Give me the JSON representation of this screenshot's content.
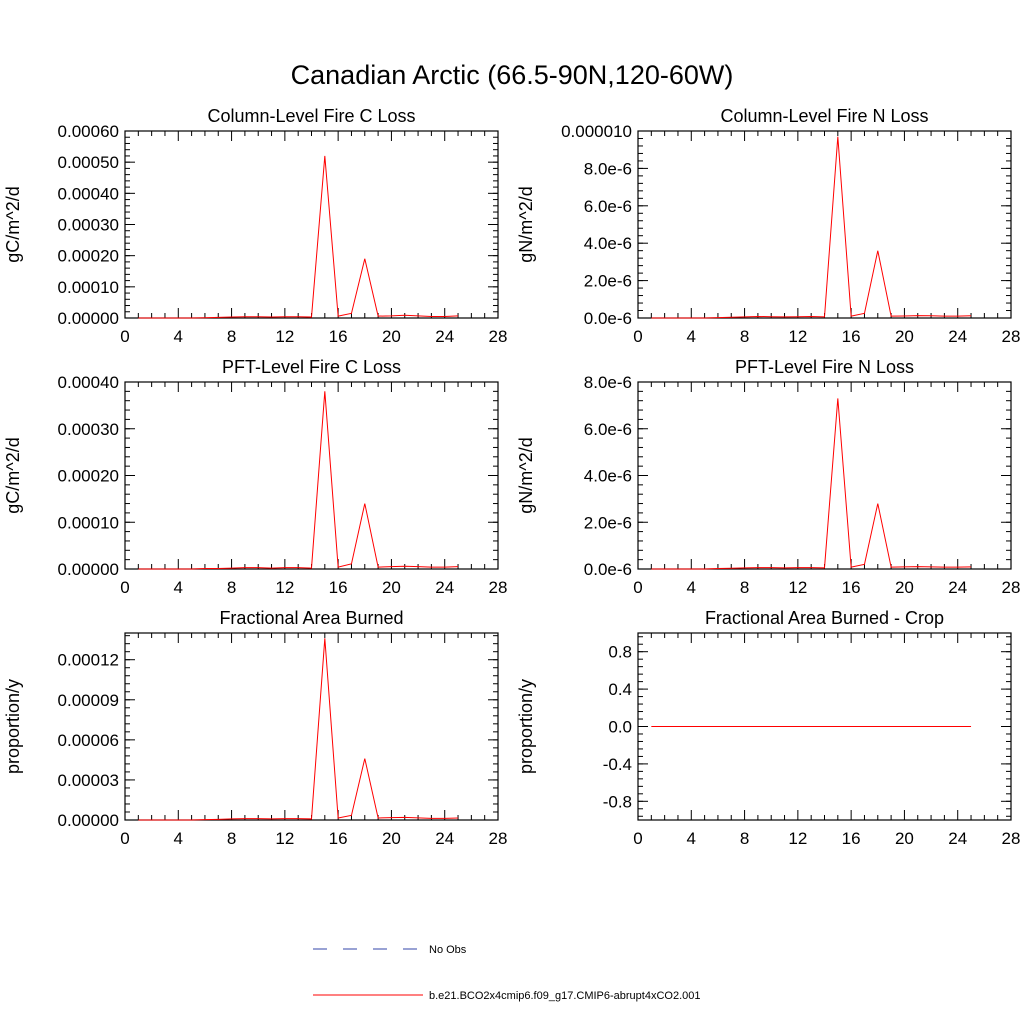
{
  "figure_title": "Canadian Arctic (66.5-90N,120-60W)",
  "legend": {
    "obs_label": "No Obs",
    "obs_color": "#3344aa",
    "model_label": "b.e21.BCO2x4cmip6.f09_g17.CMIP6-abrupt4xCO2.001",
    "model_color": "#ff0000"
  },
  "chart_data": [
    {
      "type": "line",
      "title": "Column-Level Fire C Loss",
      "ylabel": "gC/m^2/d",
      "xlim": [
        0,
        28
      ],
      "ylim": [
        0,
        0.0006
      ],
      "xticks": [
        "0",
        "4",
        "8",
        "12",
        "16",
        "20",
        "24",
        "28"
      ],
      "yticks": [
        "0.00000",
        "0.00010",
        "0.00020",
        "0.00030",
        "0.00040",
        "0.00050",
        "0.00060"
      ],
      "series": [
        {
          "color": "#ff0000",
          "x": [
            1,
            2,
            3,
            4,
            5,
            6,
            7,
            8,
            9,
            10,
            11,
            12,
            13,
            14,
            15,
            16,
            17,
            18,
            19,
            20,
            21,
            22,
            23,
            24,
            25
          ],
          "values": [
            0,
            0,
            0,
            0,
            0,
            1e-06,
            2e-06,
            3e-06,
            4e-06,
            4e-06,
            3e-06,
            4e-06,
            4e-06,
            3e-06,
            0.00052,
            6e-06,
            1.5e-05,
            0.00019,
            6e-06,
            7e-06,
            9e-06,
            7e-06,
            5e-06,
            5e-06,
            7e-06
          ]
        }
      ]
    },
    {
      "type": "line",
      "title": "Column-Level Fire N Loss",
      "ylabel": "gN/m^2/d",
      "xlim": [
        0,
        28
      ],
      "ylim": [
        0,
        1e-05
      ],
      "xticks": [
        "0",
        "4",
        "8",
        "12",
        "16",
        "20",
        "24",
        "28"
      ],
      "yticks": [
        "0.0e-6",
        "2.0e-6",
        "4.0e-6",
        "6.0e-6",
        "8.0e-6",
        "0.000010"
      ],
      "series": [
        {
          "color": "#ff0000",
          "x": [
            1,
            2,
            3,
            4,
            5,
            6,
            7,
            8,
            9,
            10,
            11,
            12,
            13,
            14,
            15,
            16,
            17,
            18,
            19,
            20,
            21,
            22,
            23,
            24,
            25
          ],
          "values": [
            0,
            0,
            0,
            0,
            0,
            2e-08,
            4e-08,
            6e-08,
            8e-08,
            7e-08,
            6e-08,
            7e-08,
            8e-08,
            6e-08,
            9.7e-06,
            1e-07,
            2.5e-07,
            3.6e-06,
            1e-07,
            1.1e-07,
            1.3e-07,
            1.2e-07,
            1e-07,
            1e-07,
            1.2e-07
          ]
        }
      ]
    },
    {
      "type": "line",
      "title": "PFT-Level Fire C Loss",
      "ylabel": "gC/m^2/d",
      "xlim": [
        0,
        28
      ],
      "ylim": [
        0,
        0.0004
      ],
      "xticks": [
        "0",
        "4",
        "8",
        "12",
        "16",
        "20",
        "24",
        "28"
      ],
      "yticks": [
        "0.00000",
        "0.00010",
        "0.00020",
        "0.00030",
        "0.00040"
      ],
      "series": [
        {
          "color": "#ff0000",
          "x": [
            1,
            2,
            3,
            4,
            5,
            6,
            7,
            8,
            9,
            10,
            11,
            12,
            13,
            14,
            15,
            16,
            17,
            18,
            19,
            20,
            21,
            22,
            23,
            24,
            25
          ],
          "values": [
            0,
            0,
            0,
            0,
            0,
            1e-06,
            1e-06,
            2e-06,
            3e-06,
            3e-06,
            2e-06,
            3e-06,
            3e-06,
            2e-06,
            0.00038,
            4e-06,
            1.1e-05,
            0.00014,
            4e-06,
            5e-06,
            6e-06,
            5e-06,
            4e-06,
            4e-06,
            5e-06
          ]
        }
      ]
    },
    {
      "type": "line",
      "title": "PFT-Level Fire N Loss",
      "ylabel": "gN/m^2/d",
      "xlim": [
        0,
        28
      ],
      "ylim": [
        0,
        8e-06
      ],
      "xticks": [
        "0",
        "4",
        "8",
        "12",
        "16",
        "20",
        "24",
        "28"
      ],
      "yticks": [
        "0.0e-6",
        "2.0e-6",
        "4.0e-6",
        "6.0e-6",
        "8.0e-6"
      ],
      "series": [
        {
          "color": "#ff0000",
          "x": [
            1,
            2,
            3,
            4,
            5,
            6,
            7,
            8,
            9,
            10,
            11,
            12,
            13,
            14,
            15,
            16,
            17,
            18,
            19,
            20,
            21,
            22,
            23,
            24,
            25
          ],
          "values": [
            0,
            0,
            0,
            0,
            0,
            2e-08,
            3e-08,
            5e-08,
            6e-08,
            6e-08,
            5e-08,
            6e-08,
            6e-08,
            5e-08,
            7.3e-06,
            8e-08,
            2e-07,
            2.8e-06,
            8e-08,
            9e-08,
            1e-07,
            9e-08,
            8e-08,
            8e-08,
            9e-08
          ]
        }
      ]
    },
    {
      "type": "line",
      "title": "Fractional Area Burned",
      "ylabel": "proportion/y",
      "xlim": [
        0,
        28
      ],
      "ylim": [
        0,
        0.00014
      ],
      "xticks": [
        "0",
        "4",
        "8",
        "12",
        "16",
        "20",
        "24",
        "28"
      ],
      "yticks": [
        "0.00000",
        "0.00003",
        "0.00006",
        "0.00009",
        "0.00012"
      ],
      "ytick_values": [
        0,
        3e-05,
        6e-05,
        9e-05,
        0.00012
      ],
      "series": [
        {
          "color": "#ff0000",
          "x": [
            1,
            2,
            3,
            4,
            5,
            6,
            7,
            8,
            9,
            10,
            11,
            12,
            13,
            14,
            15,
            16,
            17,
            18,
            19,
            20,
            21,
            22,
            23,
            24,
            25
          ],
          "values": [
            0,
            0,
            0,
            0,
            0,
            3e-07,
            5e-07,
            8e-07,
            1e-06,
            1e-06,
            8e-07,
            1e-06,
            1e-06,
            8e-07,
            0.000136,
            1.5e-06,
            3.5e-06,
            4.6e-05,
            1.5e-06,
            1.8e-06,
            2e-06,
            1.6e-06,
            1.2e-06,
            1.2e-06,
            1.5e-06
          ]
        }
      ]
    },
    {
      "type": "line",
      "title": "Fractional Area Burned - Crop",
      "ylabel": "proportion/y",
      "xlim": [
        0,
        28
      ],
      "ylim": [
        -1,
        1
      ],
      "xticks": [
        "0",
        "4",
        "8",
        "12",
        "16",
        "20",
        "24",
        "28"
      ],
      "yticks": [
        "-0.8",
        "-0.4",
        "0.0",
        "0.4",
        "0.8"
      ],
      "ytick_values": [
        -0.8,
        -0.4,
        0.0,
        0.4,
        0.8
      ],
      "series": [
        {
          "color": "#ff0000",
          "x": [
            1,
            2,
            3,
            4,
            5,
            6,
            7,
            8,
            9,
            10,
            11,
            12,
            13,
            14,
            15,
            16,
            17,
            18,
            19,
            20,
            21,
            22,
            23,
            24,
            25
          ],
          "values": [
            0,
            0,
            0,
            0,
            0,
            0,
            0,
            0,
            0,
            0,
            0,
            0,
            0,
            0,
            0,
            0,
            0,
            0,
            0,
            0,
            0,
            0,
            0,
            0,
            0
          ]
        }
      ]
    }
  ]
}
